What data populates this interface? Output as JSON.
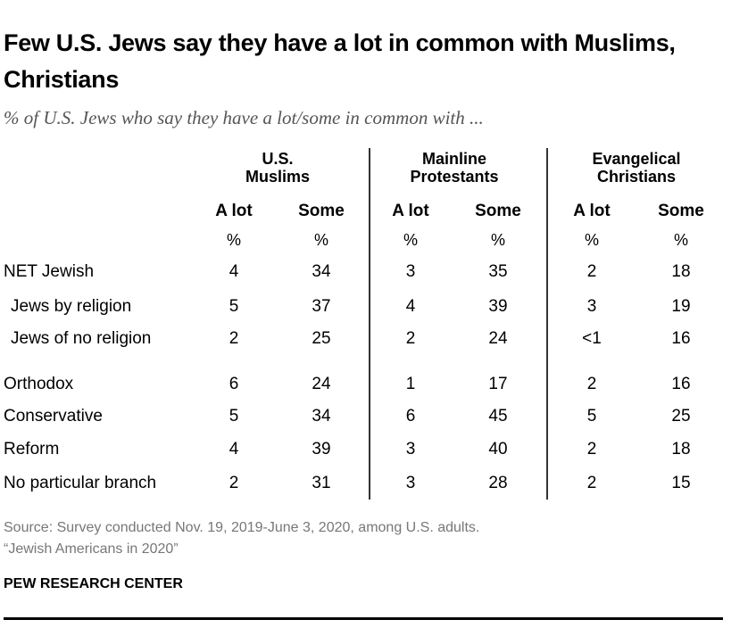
{
  "chart_data": {
    "type": "table",
    "title": "Few U.S. Jews say they have a lot in common with Muslims, Christians",
    "subtitle": "% of U.S. Jews who say they have a lot/some in common with ...",
    "groups": [
      {
        "name": "U.S.\nMuslims",
        "line1": "U.S.",
        "line2": "Muslims"
      },
      {
        "name": "Mainline\nProtestants",
        "line1": "Mainline",
        "line2": "Protestants"
      },
      {
        "name": "Evangelical\nChristians",
        "line1": "Evangelical",
        "line2": "Christians"
      }
    ],
    "columns": [
      "A lot",
      "Some",
      "A lot",
      "Some",
      "A lot",
      "Some"
    ],
    "unit": "%",
    "rows": [
      {
        "label": "NET Jewish",
        "indent": false,
        "values": [
          "4",
          "34",
          "3",
          "35",
          "2",
          "18"
        ]
      },
      {
        "label": "Jews by religion",
        "indent": true,
        "values": [
          "5",
          "37",
          "4",
          "39",
          "3",
          "19"
        ]
      },
      {
        "label": "Jews of no religion",
        "indent": true,
        "values": [
          "2",
          "25",
          "2",
          "24",
          "<1",
          "16"
        ]
      },
      {
        "label": "Orthodox",
        "indent": false,
        "values": [
          "6",
          "24",
          "1",
          "17",
          "2",
          "16"
        ]
      },
      {
        "label": "Conservative",
        "indent": false,
        "values": [
          "5",
          "34",
          "6",
          "45",
          "5",
          "25"
        ]
      },
      {
        "label": "Reform",
        "indent": false,
        "values": [
          "4",
          "39",
          "3",
          "40",
          "2",
          "18"
        ]
      },
      {
        "label": "No particular branch",
        "indent": false,
        "values": [
          "2",
          "31",
          "3",
          "28",
          "2",
          "15"
        ]
      }
    ]
  },
  "footer": {
    "source": "Source: Survey conducted Nov. 19, 2019-June 3, 2020, among U.S. adults.",
    "report": "“Jewish Americans in 2020”",
    "brand": "PEW RESEARCH CENTER"
  }
}
